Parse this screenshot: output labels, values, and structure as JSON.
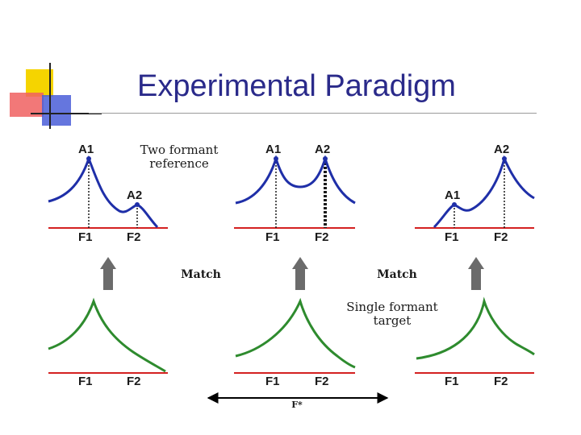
{
  "slide": {
    "title": "Experimental Paradigm"
  },
  "colors": {
    "title": "#2a2a8a",
    "reference_curve": "#1f2fa8",
    "target_curve": "#2e8b2e",
    "axis": "#d42020",
    "arrow": "#6b6b6b"
  },
  "reference_panels": [
    {
      "peak_labels": [
        "A1",
        "A2"
      ],
      "axis_labels": [
        "F1",
        "F2"
      ]
    },
    {
      "peak_labels": [
        "A1",
        "A2"
      ],
      "axis_labels": [
        "F1",
        "F2"
      ]
    },
    {
      "peak_labels": [
        "A1",
        "A2"
      ],
      "axis_labels": [
        "F1",
        "F2"
      ]
    }
  ],
  "target_panels": [
    {
      "axis_labels": [
        "F1",
        "F2"
      ]
    },
    {
      "axis_labels": [
        "F1",
        "F2"
      ]
    },
    {
      "axis_labels": [
        "F1",
        "F2"
      ]
    }
  ],
  "notes": {
    "reference_line1": "Two formant",
    "reference_line2": "reference",
    "target_line1": "Single formant",
    "target_line2": "target"
  },
  "match_labels": [
    "Match",
    "Match"
  ],
  "fstar_label": "F*"
}
